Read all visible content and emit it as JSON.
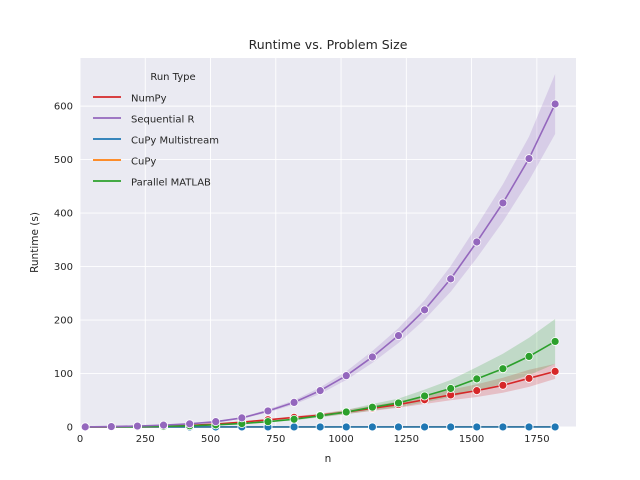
{
  "chart_data": {
    "type": "line",
    "title": "Runtime vs. Problem Size",
    "xlabel": "n",
    "ylabel": "Runtime (s)",
    "xlim": [
      0,
      1900
    ],
    "ylim": [
      0,
      690
    ],
    "xticks": [
      0,
      250,
      500,
      750,
      1000,
      1250,
      1500,
      1750
    ],
    "yticks": [
      0,
      100,
      200,
      300,
      400,
      500,
      600
    ],
    "grid": true,
    "legend": {
      "title": "Run Type",
      "placement": "top-left"
    },
    "x": [
      20,
      120,
      220,
      320,
      420,
      520,
      620,
      720,
      820,
      920,
      1020,
      1120,
      1220,
      1320,
      1420,
      1520,
      1620,
      1720,
      1820
    ],
    "series": [
      {
        "name": "NumPy",
        "color": "#d62728",
        "values": [
          0.1,
          0.3,
          0.8,
          1.5,
          3,
          5.5,
          9,
          13.5,
          18,
          22,
          28,
          35,
          42,
          51,
          60,
          68,
          78,
          91,
          104
        ],
        "band": [
          [
            0.1,
            0.1
          ],
          [
            0.3,
            0.3
          ],
          [
            0.8,
            0.8
          ],
          [
            1.4,
            1.6
          ],
          [
            2.8,
            3.2
          ],
          [
            5,
            6
          ],
          [
            8,
            10
          ],
          [
            12,
            15
          ],
          [
            16,
            20
          ],
          [
            19,
            25
          ],
          [
            24,
            32
          ],
          [
            30,
            40
          ],
          [
            36,
            48
          ],
          [
            43,
            59
          ],
          [
            50,
            70
          ],
          [
            56,
            80
          ],
          [
            64,
            92
          ],
          [
            75,
            107
          ],
          [
            90,
            118
          ]
        ]
      },
      {
        "name": "Sequential R",
        "color": "#9467bd",
        "values": [
          0.2,
          0.8,
          1.8,
          3.5,
          6,
          10,
          17,
          30,
          46,
          68,
          96,
          131,
          171,
          219,
          277,
          346,
          419,
          502,
          604
        ],
        "band": [
          [
            0.2,
            0.2
          ],
          [
            0.7,
            0.9
          ],
          [
            1.6,
            2
          ],
          [
            3.2,
            3.8
          ],
          [
            5.5,
            6.5
          ],
          [
            9,
            11
          ],
          [
            15.5,
            18.5
          ],
          [
            27,
            33
          ],
          [
            42,
            50
          ],
          [
            62,
            74
          ],
          [
            88,
            104
          ],
          [
            120,
            142
          ],
          [
            157,
            185
          ],
          [
            201,
            237
          ],
          [
            253,
            301
          ],
          [
            316,
            376
          ],
          [
            384,
            454
          ],
          [
            461,
            543
          ],
          [
            548,
            660
          ]
        ]
      },
      {
        "name": "CuPy Multistream",
        "color": "#1f77b4",
        "values": [
          0.05,
          0.05,
          0.05,
          0.05,
          0.06,
          0.06,
          0.07,
          0.07,
          0.08,
          0.08,
          0.09,
          0.1,
          0.1,
          0.11,
          0.12,
          0.12,
          0.13,
          0.14,
          0.15
        ],
        "band": null
      },
      {
        "name": "CuPy",
        "color": "#ff7f0e",
        "values": [
          0.1,
          0.1,
          0.1,
          0.1,
          0.12,
          0.13,
          0.15,
          0.16,
          0.18,
          0.2,
          0.22,
          0.24,
          0.26,
          0.28,
          0.3,
          0.33,
          0.35,
          0.38,
          0.4
        ],
        "band": null
      },
      {
        "name": "Parallel MATLAB",
        "color": "#2ca02c",
        "values": [
          0.1,
          0.3,
          0.6,
          1.2,
          2.2,
          4,
          6.5,
          10,
          14.5,
          21,
          28,
          37,
          45,
          58,
          72,
          90,
          109,
          132,
          160
        ],
        "band": [
          [
            0.1,
            0.1
          ],
          [
            0.3,
            0.3
          ],
          [
            0.6,
            0.6
          ],
          [
            1.1,
            1.3
          ],
          [
            2,
            2.4
          ],
          [
            3.6,
            4.4
          ],
          [
            5.8,
            7.2
          ],
          [
            8.8,
            11.2
          ],
          [
            12.5,
            16.5
          ],
          [
            18,
            24
          ],
          [
            24,
            32
          ],
          [
            31,
            43
          ],
          [
            37,
            53
          ],
          [
            46,
            70
          ],
          [
            56,
            88
          ],
          [
            68,
            112
          ],
          [
            81,
            137
          ],
          [
            97,
            167
          ],
          [
            118,
            202
          ]
        ]
      }
    ]
  }
}
